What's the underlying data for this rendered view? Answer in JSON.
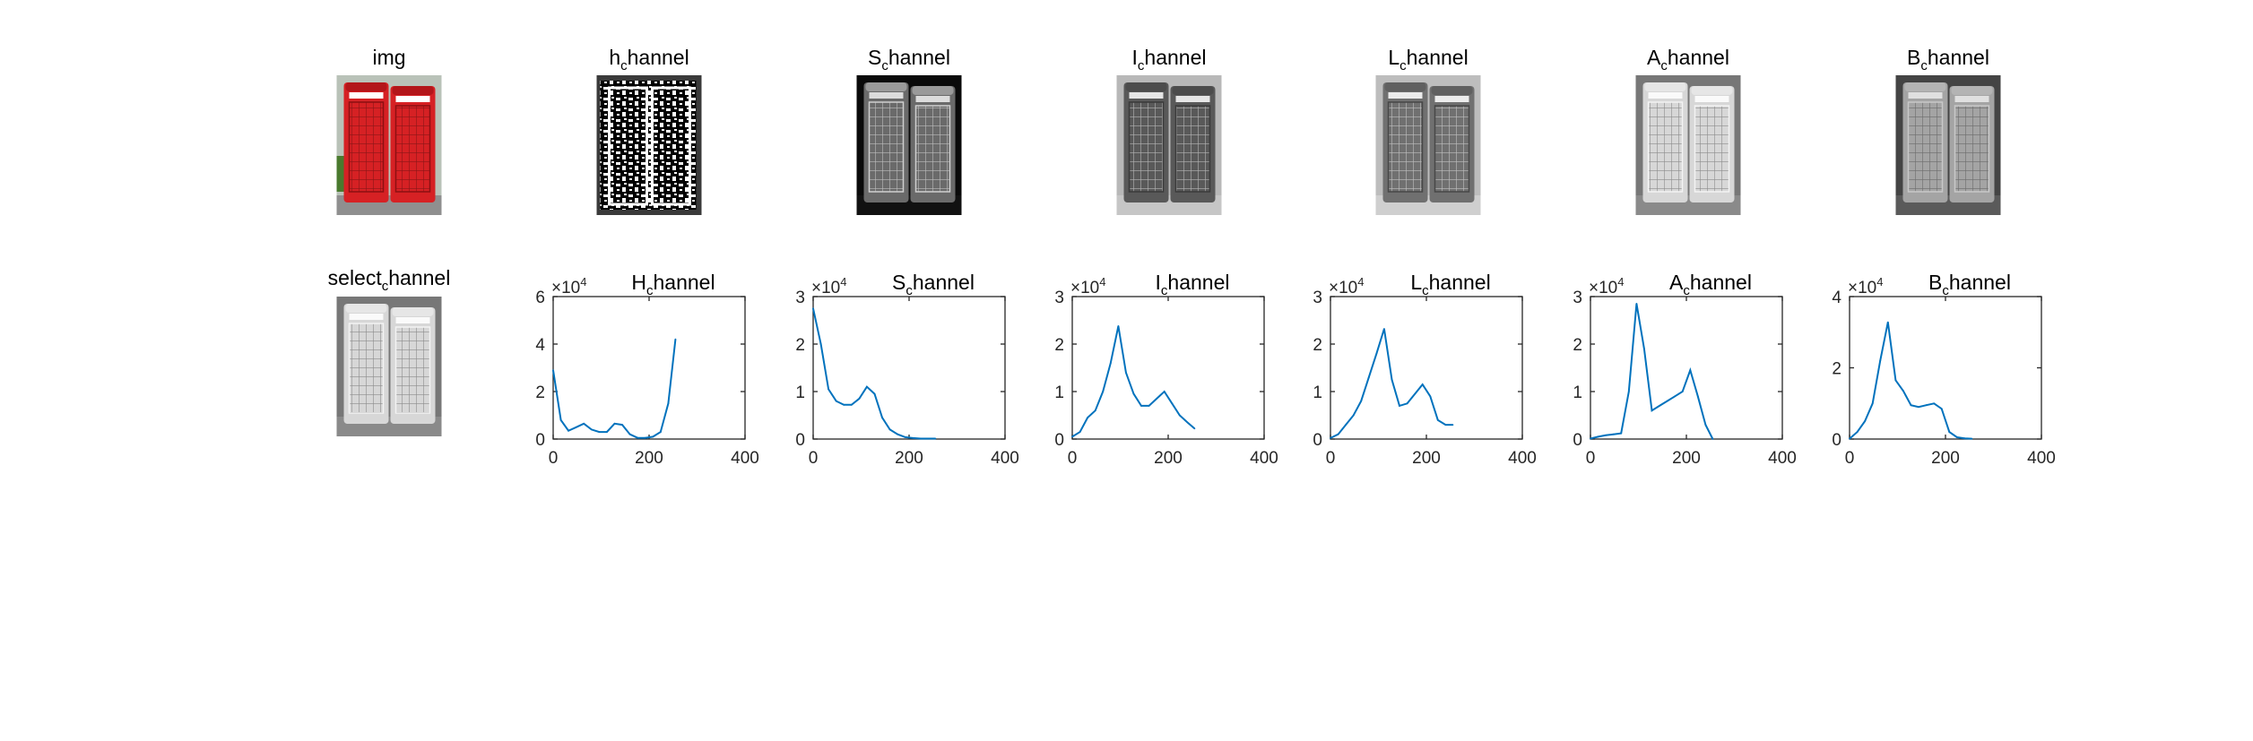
{
  "figure": {
    "series_color": "#0072BD",
    "images": [
      {
        "title_base": "img",
        "title_sub": "",
        "title_rest": "",
        "icon": "telephone-booths-color-photo",
        "tone": "color"
      },
      {
        "title_base": "h",
        "title_sub": "c",
        "title_rest": "hannel",
        "icon": "telephone-booths-hue-channel",
        "tone": "hue"
      },
      {
        "title_base": "S",
        "title_sub": "c",
        "title_rest": "hannel",
        "icon": "telephone-booths-saturation-channel",
        "tone": "sat"
      },
      {
        "title_base": "I",
        "title_sub": "c",
        "title_rest": "hannel",
        "icon": "telephone-booths-intensity-channel",
        "tone": "int"
      },
      {
        "title_base": "L",
        "title_sub": "c",
        "title_rest": "hannel",
        "icon": "telephone-booths-lightness-channel",
        "tone": "light"
      },
      {
        "title_base": "A",
        "title_sub": "c",
        "title_rest": "hannel",
        "icon": "telephone-booths-a-channel",
        "tone": "a"
      },
      {
        "title_base": "B",
        "title_sub": "c",
        "title_rest": "hannel",
        "icon": "telephone-booths-b-channel",
        "tone": "b"
      },
      {
        "title_base": "select",
        "title_sub": "c",
        "title_rest": "hannel",
        "icon": "telephone-booths-selected-channel",
        "tone": "a"
      }
    ]
  },
  "chart_data": [
    {
      "type": "line",
      "title_base": "H",
      "title_sub": "c",
      "title_rest": "hannel",
      "multiplier_base": "×10",
      "multiplier_exp": "4",
      "x": [
        0,
        16,
        32,
        48,
        64,
        80,
        96,
        112,
        128,
        144,
        160,
        176,
        192,
        208,
        224,
        240,
        255
      ],
      "y": [
        2.9,
        0.8,
        0.35,
        0.5,
        0.65,
        0.4,
        0.3,
        0.3,
        0.65,
        0.6,
        0.2,
        0.05,
        0.05,
        0.1,
        0.3,
        1.5,
        4.2
      ],
      "xlim": [
        0,
        400
      ],
      "ylim": [
        0,
        6
      ],
      "xticks": [
        0,
        200,
        400
      ],
      "yticks": [
        0,
        2,
        4,
        6
      ]
    },
    {
      "type": "line",
      "title_base": "S",
      "title_sub": "c",
      "title_rest": "hannel",
      "multiplier_base": "×10",
      "multiplier_exp": "4",
      "x": [
        0,
        16,
        32,
        48,
        64,
        80,
        96,
        112,
        128,
        144,
        160,
        176,
        192,
        208,
        224,
        240,
        255
      ],
      "y": [
        2.75,
        2.0,
        1.05,
        0.8,
        0.72,
        0.72,
        0.85,
        1.1,
        0.95,
        0.45,
        0.2,
        0.1,
        0.04,
        0.02,
        0.01,
        0.01,
        0.01
      ],
      "xlim": [
        0,
        400
      ],
      "ylim": [
        0,
        3
      ],
      "xticks": [
        0,
        200,
        400
      ],
      "yticks": [
        0,
        1,
        2,
        3
      ]
    },
    {
      "type": "line",
      "title_base": "I",
      "title_sub": "c",
      "title_rest": "hannel",
      "multiplier_base": "×10",
      "multiplier_exp": "4",
      "x": [
        0,
        16,
        32,
        48,
        64,
        80,
        96,
        112,
        128,
        144,
        160,
        176,
        192,
        208,
        224,
        240,
        255
      ],
      "y": [
        0.05,
        0.15,
        0.45,
        0.6,
        1.0,
        1.6,
        2.38,
        1.4,
        0.95,
        0.7,
        0.7,
        0.85,
        1.0,
        0.75,
        0.5,
        0.35,
        0.22
      ],
      "xlim": [
        0,
        400
      ],
      "ylim": [
        0,
        3
      ],
      "xticks": [
        0,
        200,
        400
      ],
      "yticks": [
        0,
        1,
        2,
        3
      ]
    },
    {
      "type": "line",
      "title_base": "L",
      "title_sub": "c",
      "title_rest": "hannel",
      "multiplier_base": "×10",
      "multiplier_exp": "4",
      "x": [
        0,
        16,
        32,
        48,
        64,
        80,
        96,
        112,
        128,
        144,
        160,
        176,
        192,
        208,
        224,
        240,
        255
      ],
      "y": [
        0.02,
        0.1,
        0.3,
        0.5,
        0.8,
        1.3,
        1.8,
        2.32,
        1.25,
        0.7,
        0.75,
        0.95,
        1.15,
        0.9,
        0.4,
        0.3,
        0.3
      ],
      "xlim": [
        0,
        400
      ],
      "ylim": [
        0,
        3
      ],
      "xticks": [
        0,
        200,
        400
      ],
      "yticks": [
        0,
        1,
        2,
        3
      ]
    },
    {
      "type": "line",
      "title_base": "A",
      "title_sub": "c",
      "title_rest": "hannel",
      "multiplier_base": "×10",
      "multiplier_exp": "4",
      "x": [
        0,
        16,
        32,
        48,
        64,
        80,
        96,
        112,
        128,
        144,
        160,
        176,
        192,
        208,
        224,
        240,
        255
      ],
      "y": [
        0.01,
        0.05,
        0.08,
        0.1,
        0.12,
        1.0,
        2.85,
        1.9,
        0.6,
        0.7,
        0.8,
        0.9,
        1.0,
        1.45,
        0.9,
        0.3,
        0.0
      ],
      "xlim": [
        0,
        400
      ],
      "ylim": [
        0,
        3
      ],
      "xticks": [
        0,
        200,
        400
      ],
      "yticks": [
        0,
        1,
        2,
        3
      ]
    },
    {
      "type": "line",
      "title_base": "B",
      "title_sub": "c",
      "title_rest": "hannel",
      "multiplier_base": "×10",
      "multiplier_exp": "4",
      "x": [
        0,
        16,
        32,
        48,
        64,
        80,
        96,
        112,
        128,
        144,
        160,
        176,
        192,
        208,
        224,
        240,
        255
      ],
      "y": [
        0.01,
        0.2,
        0.5,
        1.0,
        2.2,
        3.28,
        1.65,
        1.35,
        0.95,
        0.9,
        0.95,
        1.0,
        0.85,
        0.2,
        0.05,
        0.02,
        0.01
      ],
      "xlim": [
        0,
        400
      ],
      "ylim": [
        0,
        4
      ],
      "xticks": [
        0,
        200,
        400
      ],
      "yticks": [
        0,
        2,
        4
      ]
    }
  ]
}
